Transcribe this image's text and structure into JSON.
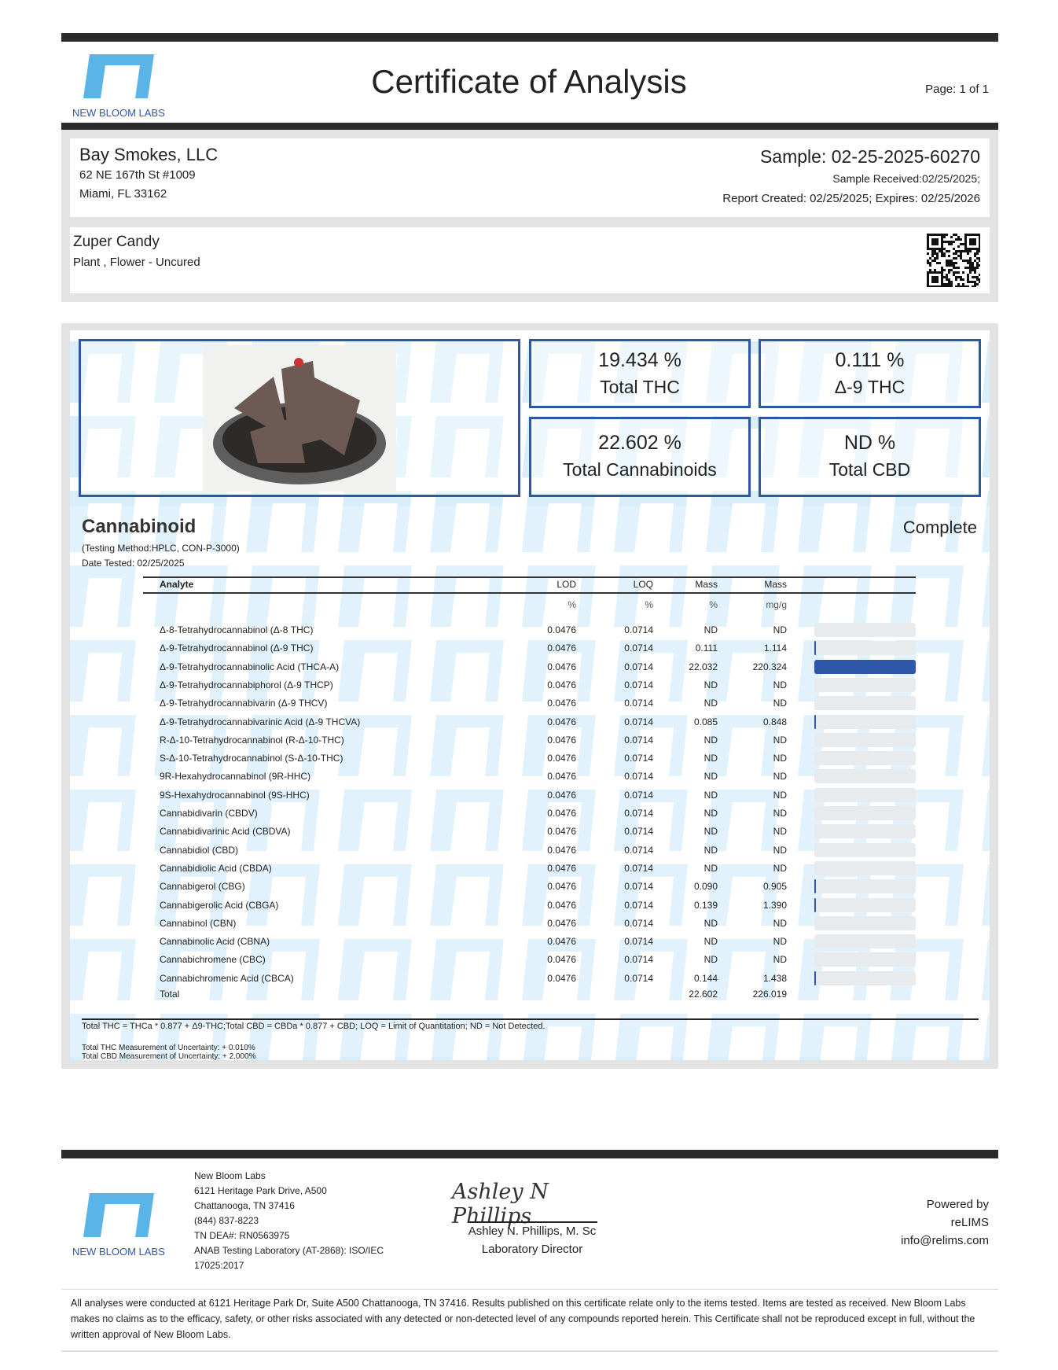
{
  "header": {
    "lab_name": "NEW BLOOM LABS",
    "title": "Certificate of Analysis",
    "page": "Page: 1 of 1"
  },
  "client": {
    "name": "Bay Smokes, LLC",
    "address1": "62 NE 167th St #1009",
    "address2": "Miami, FL 33162"
  },
  "sample": {
    "id": "Sample: 02-25-2025-60270",
    "received": "Sample Received:02/25/2025;",
    "report": "Report Created: 02/25/2025; Expires: 02/25/2026"
  },
  "product": {
    "name": "Zuper Candy",
    "type": "Plant , Flower - Uncured"
  },
  "summary": [
    {
      "value": "19.434 %",
      "label": "Total THC"
    },
    {
      "value": "0.111 %",
      "label": "Δ-9 THC"
    },
    {
      "value": "22.602 %",
      "label": "Total Cannabinoids"
    },
    {
      "value": "ND %",
      "label": "Total CBD"
    }
  ],
  "cannabinoid": {
    "title": "Cannabinoid",
    "status": "Complete",
    "method": "(Testing Method:HPLC, CON-P-3000)",
    "date": "Date Tested: 02/25/2025",
    "headers": [
      "Analyte",
      "LOD",
      "LOQ",
      "Mass",
      "Mass"
    ],
    "units": [
      "%",
      "%",
      "%",
      "mg/g"
    ],
    "rows": [
      [
        "Δ-8-Tetrahydrocannabinol (Δ-8 THC)",
        "0.0476",
        "0.0714",
        "ND",
        "ND"
      ],
      [
        "Δ-9-Tetrahydrocannabinol (Δ-9 THC)",
        "0.0476",
        "0.0714",
        "0.111",
        "1.114"
      ],
      [
        "Δ-9-Tetrahydrocannabinolic Acid (THCA-A)",
        "0.0476",
        "0.0714",
        "22.032",
        "220.324"
      ],
      [
        "Δ-9-Tetrahydrocannabiphorol (Δ-9 THCP)",
        "0.0476",
        "0.0714",
        "ND",
        "ND"
      ],
      [
        "Δ-9-Tetrahydrocannabivarin (Δ-9 THCV)",
        "0.0476",
        "0.0714",
        "ND",
        "ND"
      ],
      [
        "Δ-9-Tetrahydrocannabivarinic Acid (Δ-9 THCVA)",
        "0.0476",
        "0.0714",
        "0.085",
        "0.848"
      ],
      [
        "R-Δ-10-Tetrahydrocannabinol (R-Δ-10-THC)",
        "0.0476",
        "0.0714",
        "ND",
        "ND"
      ],
      [
        "S-Δ-10-Tetrahydrocannabinol (S-Δ-10-THC)",
        "0.0476",
        "0.0714",
        "ND",
        "ND"
      ],
      [
        "9R-Hexahydrocannabinol (9R-HHC)",
        "0.0476",
        "0.0714",
        "ND",
        "ND"
      ],
      [
        "9S-Hexahydrocannabinol (9S-HHC)",
        "0.0476",
        "0.0714",
        "ND",
        "ND"
      ],
      [
        "Cannabidivarin (CBDV)",
        "0.0476",
        "0.0714",
        "ND",
        "ND"
      ],
      [
        "Cannabidivarinic Acid (CBDVA)",
        "0.0476",
        "0.0714",
        "ND",
        "ND"
      ],
      [
        "Cannabidiol (CBD)",
        "0.0476",
        "0.0714",
        "ND",
        "ND"
      ],
      [
        "Cannabidiolic Acid (CBDA)",
        "0.0476",
        "0.0714",
        "ND",
        "ND"
      ],
      [
        "Cannabigerol (CBG)",
        "0.0476",
        "0.0714",
        "0.090",
        "0.905"
      ],
      [
        "Cannabigerolic Acid (CBGA)",
        "0.0476",
        "0.0714",
        "0.139",
        "1.390"
      ],
      [
        "Cannabinol (CBN)",
        "0.0476",
        "0.0714",
        "ND",
        "ND"
      ],
      [
        "Cannabinolic Acid (CBNA)",
        "0.0476",
        "0.0714",
        "ND",
        "ND"
      ],
      [
        "Cannabichromene (CBC)",
        "0.0476",
        "0.0714",
        "ND",
        "ND"
      ],
      [
        "Cannabichromenic Acid (CBCA)",
        "0.0476",
        "0.0714",
        "0.144",
        "1.438"
      ]
    ],
    "total": {
      "label": "Total",
      "percent": "22.602",
      "mg": "226.019"
    },
    "note": "Total THC = THCa * 0.877 + Δ9-THC;Total CBD = CBDa * 0.877 + CBD; LOQ = Limit of Quantitation; ND = Not Detected.",
    "uncertainty_thc": "Total THC Measurement of Uncertainty: + 0.010%",
    "uncertainty_cbd": "Total CBD Measurement of Uncertainty: + 2.000%"
  },
  "footer": {
    "lab_lines": [
      "New Bloom Labs",
      "6121 Heritage Park Drive, A500",
      "Chattanooga, TN 37416",
      "(844) 837-8223",
      "TN DEA#: RN0563975",
      "ANAB Testing Laboratory (AT-2868): ISO/IEC",
      "17025:2017"
    ],
    "signature": "Ashley N Phillips",
    "signer": "Ashley N. Phillips, M. Sc",
    "signer_title": "Laboratory Director",
    "powered": [
      "Powered by",
      "reLIMS",
      "info@relims.com"
    ],
    "disclaimer": "All analyses were conducted at 6121 Heritage Park Dr, Suite A500 Chattanooga, TN 37416. Results published on this certificate relate only to the items tested. Items are tested as received. New Bloom Labs makes no claims as to the efficacy, safety, or other risks associated with any detected or non-detected level of any compounds reported herein. This Certificate shall not be reproduced except in full, without the written approval of New Bloom Labs."
  },
  "colors": {
    "accent": "#2e57a8",
    "logo": "#5bb4e8",
    "pattern": "#d9eefb",
    "bar": "#2b2b2b"
  }
}
